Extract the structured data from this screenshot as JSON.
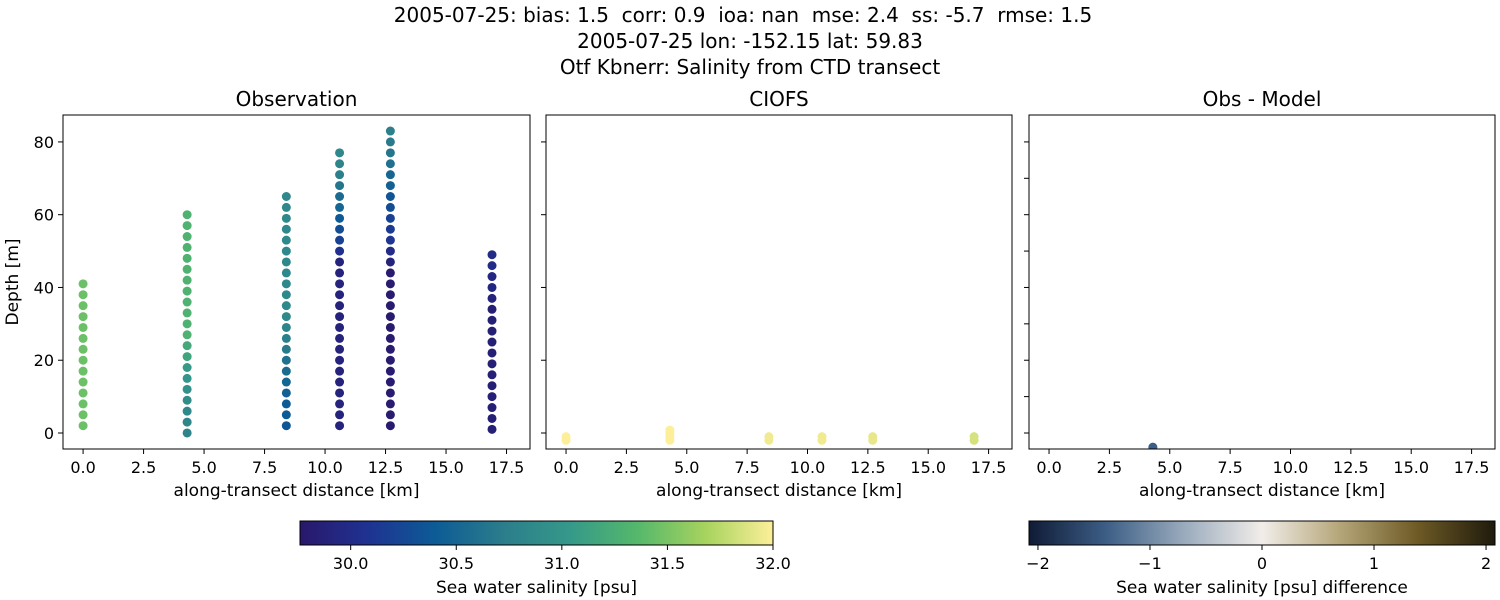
{
  "title": [
    "2005-07-25: bias: 1.5  corr: 0.9  ioa: nan  mse: 2.4  ss: -5.7  rmse: 1.5",
    "2005-07-25 lon: -152.15 lat: 59.83",
    "Otf Kbnerr: Salinity from CTD transect"
  ],
  "chart_data": [
    {
      "type": "scatter",
      "title": "Observation",
      "xlabel": "along-transect distance [km]",
      "ylabel": "Depth [m]",
      "xlim": [
        -0.83,
        18.47
      ],
      "ylim": [
        -4.4,
        87.4
      ],
      "xticks": [
        {
          "value": 0,
          "label": "0.0"
        },
        2.5,
        {
          "value": 5,
          "label": "5.0"
        },
        7.5,
        {
          "value": 10,
          "label": "10.0"
        },
        12.5,
        {
          "value": 15,
          "label": "15.0"
        },
        17.5
      ],
      "yticks": [
        0,
        20,
        40,
        60,
        80
      ],
      "ytick_labels": true,
      "colorbar": {
        "label": "Sea water salinity [psu]",
        "lim": [
          29.76,
          32.0
        ],
        "ticks": [
          {
            "value": 30,
            "label": "30.0"
          },
          30.5,
          {
            "value": 31,
            "label": "31.0"
          },
          31.5,
          {
            "value": 32,
            "label": "32.0"
          }
        ],
        "colormap": [
          "#29186b",
          "#1f3291",
          "#0d5b96",
          "#2b7d8b",
          "#35998a",
          "#55b86b",
          "#a7d35e",
          "#fdef9a"
        ]
      },
      "casts": [
        {
          "x": 0,
          "y": [
            2,
            5,
            8,
            11,
            14,
            17,
            20,
            23,
            26,
            29,
            32,
            35,
            38,
            41
          ],
          "values": [
            31.45,
            31.45,
            31.45,
            31.45,
            31.45,
            31.45,
            31.45,
            31.45,
            31.45,
            31.45,
            31.45,
            31.45,
            31.45,
            31.45
          ]
        },
        {
          "x": 4.3,
          "y": [
            0,
            3,
            6,
            9,
            12,
            15,
            18,
            21,
            24,
            27,
            30,
            33,
            36,
            39,
            42,
            45,
            48,
            51,
            54,
            57,
            60
          ],
          "values": [
            30.8,
            30.82,
            30.85,
            30.9,
            30.95,
            31.0,
            31.05,
            31.15,
            31.2,
            31.3,
            31.3,
            31.3,
            31.3,
            31.3,
            31.3,
            31.3,
            31.3,
            31.3,
            31.3,
            31.3,
            31.3
          ]
        },
        {
          "x": 8.4,
          "y": [
            2,
            5,
            8,
            11,
            14,
            17,
            20,
            23,
            26,
            29,
            32,
            35,
            38,
            41,
            44,
            47,
            50,
            53,
            56,
            59,
            62,
            65
          ],
          "values": [
            30.35,
            30.4,
            30.4,
            30.45,
            30.5,
            30.55,
            30.6,
            30.7,
            30.75,
            30.8,
            30.85,
            30.85,
            30.85,
            30.85,
            30.85,
            30.85,
            30.85,
            30.85,
            30.85,
            30.85,
            30.85,
            30.85
          ]
        },
        {
          "x": 10.6,
          "y": [
            2,
            5,
            8,
            11,
            14,
            17,
            20,
            23,
            26,
            29,
            32,
            35,
            38,
            41,
            44,
            47,
            50,
            53,
            56,
            59,
            62,
            65,
            68,
            71,
            74,
            77
          ],
          "values": [
            29.9,
            29.9,
            29.9,
            29.9,
            29.9,
            29.9,
            29.9,
            29.9,
            29.9,
            29.9,
            29.9,
            29.9,
            29.9,
            29.9,
            29.9,
            29.9,
            30.05,
            30.2,
            30.3,
            30.4,
            30.5,
            30.55,
            30.65,
            30.75,
            30.8,
            30.85
          ]
        },
        {
          "x": 12.7,
          "y": [
            2,
            5,
            8,
            11,
            14,
            17,
            20,
            23,
            26,
            29,
            32,
            35,
            38,
            41,
            44,
            47,
            50,
            53,
            56,
            59,
            62,
            65,
            68,
            71,
            74,
            77,
            80,
            83
          ],
          "values": [
            29.8,
            29.8,
            29.8,
            29.8,
            29.8,
            29.8,
            29.8,
            29.8,
            29.8,
            29.8,
            29.8,
            29.8,
            29.8,
            29.8,
            29.8,
            29.9,
            30.0,
            30.1,
            30.15,
            30.2,
            30.3,
            30.35,
            30.45,
            30.5,
            30.6,
            30.65,
            30.7,
            30.75
          ]
        },
        {
          "x": 16.9,
          "y": [
            1,
            4,
            7,
            10,
            13,
            16,
            19,
            22,
            25,
            28,
            31,
            34,
            37,
            40,
            43,
            46,
            49
          ],
          "values": [
            29.85,
            29.85,
            29.85,
            29.85,
            29.85,
            29.85,
            29.85,
            29.85,
            29.85,
            29.85,
            29.85,
            29.85,
            29.9,
            29.95,
            29.95,
            30.0,
            30.0
          ]
        }
      ]
    },
    {
      "type": "scatter",
      "title": "CIOFS",
      "xlabel": "along-transect distance [km]",
      "xlim": [
        -0.83,
        18.47
      ],
      "ylim": [
        -4.4,
        87.4
      ],
      "xticks": [
        {
          "value": 0,
          "label": "0.0"
        },
        2.5,
        {
          "value": 5,
          "label": "5.0"
        },
        7.5,
        {
          "value": 10,
          "label": "10.0"
        },
        12.5,
        {
          "value": 15,
          "label": "15.0"
        },
        17.5
      ],
      "yticks": [
        0,
        20,
        40,
        60,
        80
      ],
      "ytick_labels": false,
      "casts": [
        {
          "x": 0,
          "y": [
            -2,
            -1
          ],
          "values": [
            32.0,
            32.0
          ]
        },
        {
          "x": 4.3,
          "y": [
            -2,
            -1,
            0,
            0.8
          ],
          "values": [
            32.0,
            32.0,
            32.0,
            32.0
          ]
        },
        {
          "x": 8.4,
          "y": [
            -2,
            -1
          ],
          "values": [
            31.95,
            31.95
          ]
        },
        {
          "x": 10.6,
          "y": [
            -2,
            -1
          ],
          "values": [
            31.95,
            31.95
          ]
        },
        {
          "x": 12.7,
          "y": [
            -2,
            -1
          ],
          "values": [
            31.92,
            31.92
          ]
        },
        {
          "x": 16.9,
          "y": [
            -2,
            -1
          ],
          "values": [
            31.85,
            31.85
          ]
        }
      ]
    },
    {
      "type": "scatter",
      "title": "Obs - Model",
      "xlabel": "along-transect distance [km]",
      "xlim": [
        -0.83,
        18.47
      ],
      "ylim": [
        -4.4,
        87.4
      ],
      "xticks": [
        {
          "value": 0,
          "label": "0.0"
        },
        2.5,
        {
          "value": 5,
          "label": "5.0"
        },
        7.5,
        {
          "value": 10,
          "label": "10.0"
        },
        12.5,
        {
          "value": 15,
          "label": "15.0"
        },
        17.5
      ],
      "yticks": [
        0,
        10,
        20,
        30,
        40,
        50,
        60,
        70,
        80
      ],
      "ytick_labels": false,
      "colorbar": {
        "label": "Sea water salinity [psu] difference",
        "lim": [
          -2.08,
          2.08
        ],
        "ticks": [
          {
            "value": -2,
            "label": "−2"
          },
          {
            "value": -1,
            "label": "−1"
          },
          0,
          1,
          2
        ],
        "colormap": [
          "#0f1b36",
          "#3d5e86",
          "#9aabbd",
          "#f1ede9",
          "#b5a679",
          "#6e5a25",
          "#1e1a0c"
        ]
      },
      "casts": [
        {
          "x": 4.3,
          "y": [
            -3.9
          ],
          "values": [
            -1.4
          ]
        }
      ]
    }
  ]
}
